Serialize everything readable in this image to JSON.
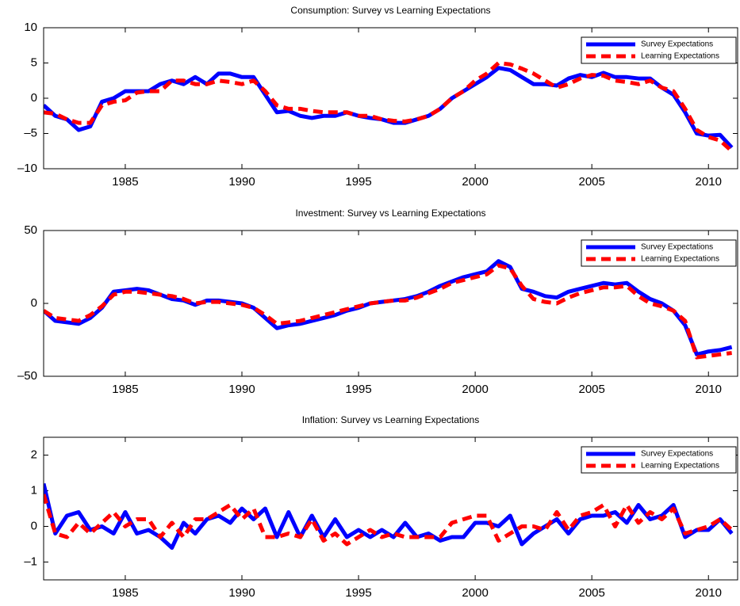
{
  "chart_data": [
    {
      "type": "line",
      "title": "Consumption: Survey vs Learning Expectations",
      "x": [
        1981.5,
        1982,
        1982.5,
        1983,
        1983.5,
        1984,
        1984.5,
        1985,
        1985.5,
        1986,
        1986.5,
        1987,
        1987.5,
        1988,
        1988.5,
        1989,
        1989.5,
        1990,
        1990.5,
        1991,
        1991.5,
        1992,
        1992.5,
        1993,
        1993.5,
        1994,
        1994.5,
        1995,
        1995.5,
        1996,
        1996.5,
        1997,
        1997.5,
        1998,
        1998.5,
        1999,
        1999.5,
        2000,
        2000.5,
        2001,
        2001.5,
        2002,
        2002.5,
        2003,
        2003.5,
        2004,
        2004.5,
        2005,
        2005.5,
        2006,
        2006.5,
        2007,
        2007.5,
        2008,
        2008.5,
        2009,
        2009.5,
        2010,
        2010.5,
        2011
      ],
      "series": [
        {
          "name": "Survey Expectations",
          "color": "#0000ff",
          "dashed": false,
          "values": [
            -1,
            -2.5,
            -3,
            -4.5,
            -4,
            -0.5,
            0,
            1,
            1,
            1,
            2,
            2.5,
            2,
            3,
            2,
            3.5,
            3.5,
            3,
            3,
            0.5,
            -2,
            -1.8,
            -2.5,
            -2.8,
            -2.5,
            -2.5,
            -2,
            -2.5,
            -2.8,
            -3,
            -3.5,
            -3.5,
            -3,
            -2.5,
            -1.5,
            0,
            1,
            2,
            3,
            4.3,
            4,
            3,
            2,
            2,
            1.8,
            2.8,
            3.3,
            3,
            3.6,
            3,
            3,
            2.8,
            2.8,
            1.5,
            0.5,
            -2,
            -5,
            -5.3,
            -5.2,
            -7
          ]
        },
        {
          "name": "Learning Expectations",
          "color": "#ff0000",
          "dashed": true,
          "values": [
            -2,
            -2.2,
            -3,
            -3.5,
            -3.5,
            -1,
            -0.5,
            -0.3,
            0.8,
            1,
            1,
            2.5,
            2.5,
            2,
            2,
            2.5,
            2.3,
            2,
            2.5,
            1,
            -1,
            -1.5,
            -1.5,
            -1.8,
            -2,
            -2,
            -2,
            -2.5,
            -2.5,
            -3,
            -3.2,
            -3.3,
            -3,
            -2.5,
            -1.5,
            0,
            1,
            2.5,
            3.5,
            5,
            4.8,
            4.2,
            3.5,
            2.5,
            1.5,
            2,
            2.8,
            3.3,
            3.2,
            2.5,
            2.3,
            2,
            2.5,
            1.5,
            1,
            -1.5,
            -4.5,
            -5.5,
            -6,
            -7.5
          ]
        }
      ],
      "xlim": [
        1981.5,
        2011.25
      ],
      "xticks": [
        1985,
        1990,
        1995,
        2000,
        2005,
        2010
      ],
      "ylim": [
        -10,
        10
      ],
      "yticks": [
        {
          "value": -10,
          "label": "–10"
        },
        {
          "value": -5,
          "label": "–5"
        },
        0,
        5,
        10
      ],
      "legend": "upper right"
    },
    {
      "type": "line",
      "title": "Investment: Survey vs Learning Expectations",
      "x": [
        1981.5,
        1982,
        1982.5,
        1983,
        1983.5,
        1984,
        1984.5,
        1985,
        1985.5,
        1986,
        1986.5,
        1987,
        1987.5,
        1988,
        1988.5,
        1989,
        1989.5,
        1990,
        1990.5,
        1991,
        1991.5,
        1992,
        1992.5,
        1993,
        1993.5,
        1994,
        1994.5,
        1995,
        1995.5,
        1996,
        1996.5,
        1997,
        1997.5,
        1998,
        1998.5,
        1999,
        1999.5,
        2000,
        2000.5,
        2001,
        2001.5,
        2002,
        2002.5,
        2003,
        2003.5,
        2004,
        2004.5,
        2005,
        2005.5,
        2006,
        2006.5,
        2007,
        2007.5,
        2008,
        2008.5,
        2009,
        2009.5,
        2010,
        2010.5,
        2011
      ],
      "series": [
        {
          "name": "Survey Expectations",
          "color": "#0000ff",
          "dashed": false,
          "values": [
            -5,
            -12,
            -13,
            -14,
            -10,
            -3,
            8,
            9,
            10,
            9,
            6,
            3,
            2,
            -1,
            2,
            2,
            1,
            0,
            -3,
            -10,
            -17,
            -15,
            -14,
            -12,
            -10,
            -8,
            -5,
            -3,
            0,
            1,
            2,
            3,
            5,
            8,
            12,
            15,
            18,
            20,
            22,
            29,
            25,
            10,
            8,
            5,
            4,
            8,
            10,
            12,
            14,
            13,
            14,
            8,
            3,
            0,
            -5,
            -15,
            -35,
            -33,
            -32,
            -30
          ]
        },
        {
          "name": "Learning Expectations",
          "color": "#ff0000",
          "dashed": true,
          "values": [
            -5,
            -10,
            -11,
            -12,
            -8,
            -2,
            6,
            8,
            8,
            7,
            6,
            5,
            3,
            0,
            1,
            1,
            0,
            -1,
            -3,
            -8,
            -14,
            -13,
            -12,
            -10,
            -8,
            -6,
            -4,
            -2,
            0,
            1,
            2,
            2,
            4,
            7,
            10,
            14,
            16,
            18,
            20,
            26,
            24,
            12,
            3,
            1,
            0,
            4,
            7,
            9,
            11,
            11,
            12,
            5,
            0,
            -2,
            -5,
            -12,
            -37,
            -36,
            -35,
            -34
          ]
        }
      ],
      "xlim": [
        1981.5,
        2011.25
      ],
      "xticks": [
        1985,
        1990,
        1995,
        2000,
        2005,
        2010
      ],
      "ylim": [
        -50,
        50
      ],
      "yticks": [
        {
          "value": -50,
          "label": "–50"
        },
        0,
        50
      ],
      "legend": "upper right"
    },
    {
      "type": "line",
      "title": "Inflation: Survey vs Learning Expectations",
      "x": [
        1981.5,
        1982,
        1982.5,
        1983,
        1983.5,
        1984,
        1984.5,
        1985,
        1985.5,
        1986,
        1986.5,
        1987,
        1987.5,
        1988,
        1988.5,
        1989,
        1989.5,
        1990,
        1990.5,
        1991,
        1991.5,
        1992,
        1992.5,
        1993,
        1993.5,
        1994,
        1994.5,
        1995,
        1995.5,
        1996,
        1996.5,
        1997,
        1997.5,
        1998,
        1998.5,
        1999,
        1999.5,
        2000,
        2000.5,
        2001,
        2001.5,
        2002,
        2002.5,
        2003,
        2003.5,
        2004,
        2004.5,
        2005,
        2005.5,
        2006,
        2006.5,
        2007,
        2007.5,
        2008,
        2008.5,
        2009,
        2009.5,
        2010,
        2010.5,
        2011
      ],
      "series": [
        {
          "name": "Survey Expectations",
          "color": "#0000ff",
          "dashed": false,
          "values": [
            1.2,
            -0.2,
            0.3,
            0.4,
            -0.1,
            0,
            -0.2,
            0.4,
            -0.2,
            -0.1,
            -0.3,
            -0.6,
            0.1,
            -0.2,
            0.2,
            0.3,
            0.1,
            0.5,
            0.2,
            0.5,
            -0.3,
            0.4,
            -0.3,
            0.3,
            -0.3,
            0.2,
            -0.3,
            -0.1,
            -0.3,
            -0.1,
            -0.3,
            0.1,
            -0.3,
            -0.2,
            -0.4,
            -0.3,
            -0.3,
            0.1,
            0.1,
            0,
            0.3,
            -0.5,
            -0.2,
            0,
            0.2,
            -0.2,
            0.2,
            0.3,
            0.3,
            0.4,
            0.1,
            0.6,
            0.2,
            0.3,
            0.6,
            -0.3,
            -0.1,
            -0.1,
            0.2,
            -0.2
          ]
        },
        {
          "name": "Learning Expectations",
          "color": "#ff0000",
          "dashed": true,
          "values": [
            0.9,
            -0.2,
            -0.3,
            0.1,
            -0.2,
            0.1,
            0.4,
            0,
            0.2,
            0.2,
            -0.3,
            0.1,
            -0.3,
            0.2,
            0.2,
            0.4,
            0.6,
            0.2,
            0.5,
            -0.3,
            -0.3,
            -0.2,
            -0.3,
            0.2,
            -0.4,
            -0.2,
            -0.5,
            -0.3,
            -0.1,
            -0.3,
            -0.2,
            -0.3,
            -0.3,
            -0.3,
            -0.3,
            0.1,
            0.2,
            0.3,
            0.3,
            -0.4,
            -0.2,
            0,
            0,
            -0.1,
            0.4,
            -0.1,
            0.3,
            0.4,
            0.6,
            0,
            0.6,
            0.1,
            0.4,
            0.2,
            0.5,
            -0.2,
            -0.1,
            0,
            0.2,
            -0.1
          ]
        }
      ],
      "xlim": [
        1981.5,
        2011.25
      ],
      "xticks": [
        1985,
        1990,
        1995,
        2000,
        2005,
        2010
      ],
      "ylim": [
        -1.5,
        2.5
      ],
      "yticks": [
        {
          "value": -1,
          "label": "–1"
        },
        0,
        1,
        2
      ],
      "legend": "upper right"
    }
  ]
}
